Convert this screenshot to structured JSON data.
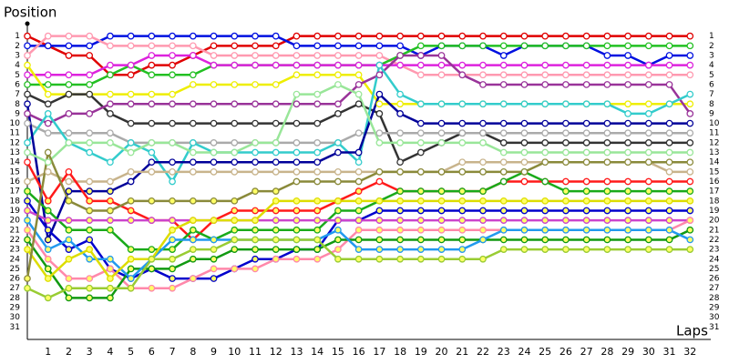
{
  "chart_data": {
    "type": "line",
    "title": "Position",
    "x_label": "Laps",
    "x": [
      0,
      1,
      2,
      3,
      4,
      5,
      6,
      7,
      8,
      9,
      10,
      11,
      12,
      13,
      14,
      15,
      16,
      17,
      18,
      19,
      20,
      21,
      22,
      23,
      24,
      25,
      26,
      27,
      28,
      29,
      30,
      31,
      32
    ],
    "xlim": [
      0,
      33
    ],
    "xticks": [
      1,
      2,
      3,
      4,
      5,
      6,
      7,
      8,
      9,
      10,
      11,
      12,
      13,
      14,
      15,
      16,
      17,
      18,
      19,
      20,
      21,
      22,
      23,
      24,
      25,
      26,
      27,
      28,
      29,
      30,
      31,
      32
    ],
    "ylim": [
      0,
      32
    ],
    "yticks": [
      1,
      2,
      3,
      4,
      5,
      6,
      7,
      8,
      9,
      10,
      11,
      12,
      13,
      14,
      15,
      16,
      17,
      18,
      19,
      20,
      21,
      22,
      23,
      24,
      25,
      26,
      27,
      28,
      29,
      30,
      31
    ],
    "y_inverted": true,
    "grid": false,
    "series": [
      {
        "color": "#e00000",
        "values": [
          1,
          2,
          3,
          3,
          5,
          5,
          4,
          4,
          3,
          2,
          2,
          2,
          2,
          1,
          1,
          1,
          1,
          1,
          1,
          1,
          1,
          1,
          1,
          1,
          1,
          1,
          1,
          1,
          1,
          1,
          1,
          1,
          1
        ]
      },
      {
        "color": "#0010e0",
        "values": [
          2,
          2,
          2,
          2,
          1,
          1,
          1,
          1,
          1,
          1,
          1,
          1,
          1,
          2,
          2,
          2,
          2,
          2,
          2,
          3,
          2,
          2,
          2,
          3,
          2,
          2,
          2,
          2,
          3,
          3,
          4,
          3,
          3
        ]
      },
      {
        "color": "#ff99b0",
        "values": [
          3,
          1,
          1,
          1,
          2,
          2,
          2,
          2,
          2,
          3,
          3,
          3,
          3,
          3,
          3,
          3,
          3,
          3,
          4,
          5,
          5,
          5,
          5,
          5,
          5,
          5,
          5,
          5,
          5,
          5,
          5,
          5,
          5
        ]
      },
      {
        "color": "#22c022",
        "values": [
          6,
          6,
          6,
          6,
          5,
          4,
          5,
          5,
          5,
          4,
          4,
          4,
          4,
          4,
          4,
          4,
          4,
          4,
          3,
          2,
          2,
          2,
          2,
          2,
          2,
          2,
          2,
          2,
          2,
          2,
          2,
          2,
          2
        ]
      },
      {
        "color": "#dd22dd",
        "values": [
          5,
          5,
          5,
          5,
          4,
          4,
          3,
          3,
          3,
          4,
          4,
          4,
          4,
          4,
          4,
          4,
          4,
          4,
          4,
          4,
          4,
          4,
          4,
          4,
          4,
          4,
          4,
          4,
          4,
          4,
          4,
          4,
          4
        ]
      },
      {
        "color": "#eeee00",
        "values": [
          4,
          7,
          7,
          7,
          7,
          7,
          7,
          7,
          6,
          6,
          6,
          6,
          6,
          5,
          5,
          5,
          5,
          8,
          8,
          8,
          8,
          8,
          8,
          8,
          8,
          8,
          8,
          8,
          8,
          8,
          8,
          8,
          8
        ]
      },
      {
        "color": "#333333",
        "values": [
          7,
          8,
          7,
          7,
          9,
          10,
          10,
          10,
          10,
          10,
          10,
          10,
          10,
          10,
          10,
          9,
          8,
          9,
          14,
          13,
          12,
          11,
          11,
          12,
          12,
          12,
          12,
          12,
          12,
          12,
          12,
          12,
          12
        ]
      },
      {
        "color": "#993399",
        "values": [
          9,
          10,
          9,
          9,
          8,
          8,
          8,
          8,
          8,
          8,
          8,
          8,
          8,
          8,
          8,
          8,
          6,
          5,
          3,
          3,
          3,
          5,
          6,
          6,
          6,
          6,
          6,
          6,
          6,
          6,
          6,
          6,
          9
        ]
      },
      {
        "color": "#aaaaaa",
        "values": [
          10,
          11,
          11,
          11,
          11,
          12,
          12,
          12,
          12,
          12,
          12,
          12,
          12,
          12,
          12,
          12,
          11,
          11,
          11,
          11,
          11,
          11,
          11,
          11,
          11,
          11,
          11,
          11,
          11,
          11,
          11,
          11,
          11
        ]
      },
      {
        "color": "#33cccc",
        "values": [
          12,
          9,
          12,
          13,
          14,
          12,
          13,
          16,
          12,
          13,
          13,
          13,
          13,
          13,
          13,
          12,
          14,
          4,
          7,
          8,
          8,
          8,
          8,
          8,
          8,
          8,
          8,
          8,
          8,
          9,
          9,
          8,
          7
        ]
      },
      {
        "color": "#000099",
        "values": [
          8,
          22,
          17,
          17,
          17,
          16,
          14,
          14,
          14,
          14,
          14,
          14,
          14,
          14,
          14,
          13,
          13,
          7,
          9,
          10,
          10,
          10,
          10,
          10,
          10,
          10,
          10,
          10,
          10,
          10,
          10,
          10,
          10
        ]
      },
      {
        "color": "#99e699",
        "values": [
          13,
          14,
          12,
          12,
          12,
          13,
          12,
          12,
          13,
          13,
          13,
          12,
          12,
          7,
          7,
          6,
          7,
          12,
          12,
          12,
          12,
          12,
          12,
          13,
          13,
          13,
          13,
          13,
          13,
          13,
          13,
          13,
          13
        ]
      },
      {
        "color": "#c8b48c",
        "values": [
          16,
          15,
          16,
          16,
          16,
          15,
          15,
          15,
          15,
          15,
          15,
          15,
          15,
          15,
          15,
          15,
          15,
          15,
          15,
          15,
          15,
          14,
          14,
          14,
          14,
          14,
          14,
          14,
          14,
          14,
          14,
          15,
          15
        ]
      },
      {
        "color": "#ff1a1a",
        "values": [
          14,
          18,
          15,
          18,
          18,
          19,
          20,
          20,
          22,
          20,
          19,
          19,
          19,
          19,
          19,
          18,
          17,
          16,
          17,
          17,
          17,
          17,
          17,
          16,
          16,
          16,
          16,
          16,
          16,
          16,
          16,
          16,
          16
        ]
      },
      {
        "color": "#1aaa1a",
        "values": [
          17,
          19,
          21,
          21,
          21,
          23,
          23,
          23,
          21,
          22,
          21,
          21,
          21,
          21,
          21,
          19,
          19,
          18,
          17,
          17,
          17,
          17,
          17,
          16,
          15,
          16,
          17,
          17,
          17,
          17,
          17,
          17,
          17
        ]
      },
      {
        "color": "#0000cc",
        "values": [
          18,
          21,
          23,
          22,
          25,
          26,
          25,
          26,
          26,
          26,
          25,
          24,
          24,
          23,
          23,
          20,
          20,
          19,
          19,
          19,
          19,
          19,
          19,
          19,
          19,
          19,
          19,
          19,
          19,
          19,
          19,
          19,
          19
        ]
      },
      {
        "color": "#cc44cc",
        "values": [
          19,
          20,
          20,
          20,
          20,
          20,
          20,
          20,
          20,
          20,
          20,
          20,
          20,
          20,
          20,
          20,
          20,
          20,
          20,
          20,
          20,
          20,
          20,
          20,
          20,
          20,
          20,
          20,
          20,
          20,
          20,
          20,
          20
        ]
      },
      {
        "color": "#ff88aa",
        "values": [
          21,
          24,
          26,
          26,
          25,
          27,
          27,
          27,
          26,
          25,
          25,
          25,
          24,
          24,
          24,
          23,
          21,
          21,
          21,
          21,
          21,
          21,
          21,
          21,
          21,
          21,
          21,
          21,
          21,
          21,
          21,
          21,
          20
        ]
      },
      {
        "color": "#119911",
        "values": [
          22,
          25,
          28,
          28,
          28,
          25,
          25,
          25,
          24,
          24,
          23,
          23,
          23,
          23,
          23,
          22,
          22,
          22,
          22,
          22,
          22,
          22,
          22,
          22,
          22,
          22,
          22,
          22,
          22,
          22,
          22,
          22,
          21
        ]
      },
      {
        "color": "#2299ee",
        "values": [
          20,
          23,
          22,
          24,
          24,
          26,
          24,
          22,
          22,
          22,
          22,
          22,
          22,
          22,
          22,
          21,
          23,
          23,
          23,
          23,
          23,
          23,
          22,
          21,
          21,
          21,
          21,
          21,
          21,
          21,
          21,
          21,
          22
        ]
      },
      {
        "color": "#dddd00",
        "values": [
          23,
          26,
          24,
          23,
          26,
          24,
          24,
          21,
          20,
          20,
          20,
          20,
          18,
          18,
          18,
          18,
          18,
          18,
          18,
          18,
          18,
          18,
          18,
          18,
          18,
          18,
          18,
          18,
          18,
          18,
          18,
          18,
          18
        ]
      },
      {
        "color": "#8a8a3a",
        "values": [
          26,
          13,
          18,
          19,
          19,
          18,
          18,
          18,
          18,
          18,
          18,
          17,
          17,
          16,
          16,
          16,
          16,
          15,
          15,
          15,
          15,
          15,
          15,
          15,
          15,
          14,
          14,
          14,
          14,
          14,
          14,
          14,
          14
        ]
      },
      {
        "color": "#99cc33",
        "values": [
          27,
          28,
          27,
          27,
          27,
          27,
          24,
          24,
          23,
          23,
          22,
          22,
          22,
          22,
          22,
          24,
          24,
          24,
          24,
          24,
          24,
          24,
          24,
          23,
          23,
          23,
          23,
          23,
          23,
          23,
          23,
          23,
          23
        ]
      }
    ]
  }
}
